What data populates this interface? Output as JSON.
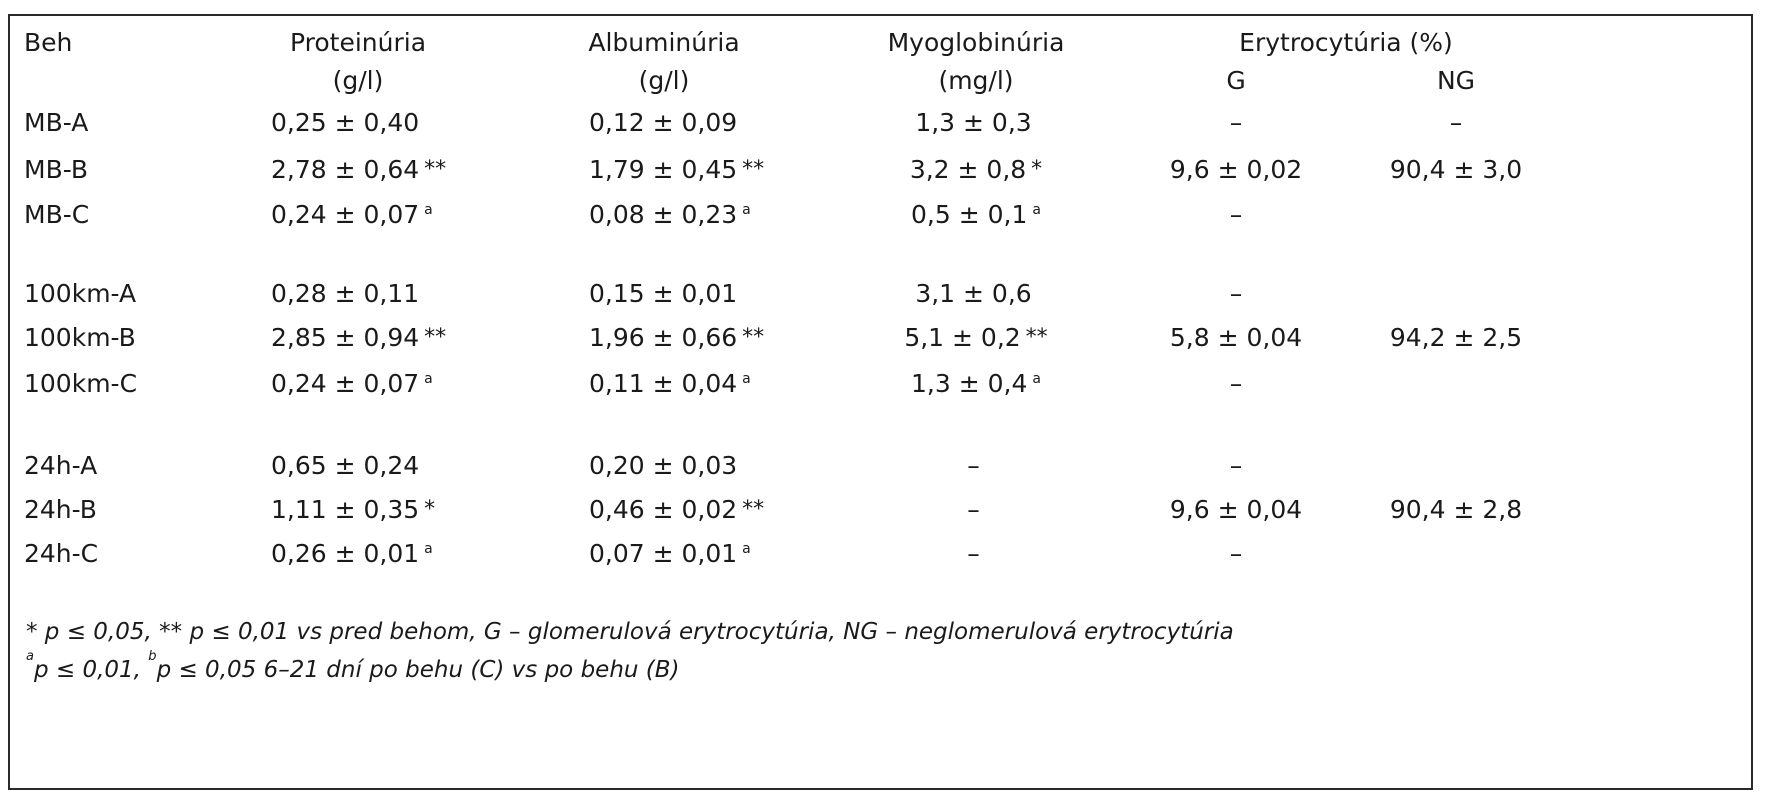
{
  "table": {
    "headers": {
      "beh": "Beh",
      "proteinuria": "Proteinúria",
      "proteinuria_unit": "(g/l)",
      "albuminuria": "Albuminúria",
      "albuminuria_unit": "(g/l)",
      "myoglobinuria": "Myoglobinúria",
      "myoglobinuria_unit": "(mg/l)",
      "erytrocyturia": "Erytrocytúria (%)",
      "g": "G",
      "ng": "NG"
    },
    "rows": [
      {
        "beh": "MB-A",
        "prot": "0,25 ± 0,40",
        "prot_mark": "",
        "alb": "0,12 ± 0,09",
        "alb_mark": "",
        "myo": "1,3 ± 0,3",
        "myo_mark": "",
        "g": "–",
        "ng": "–"
      },
      {
        "beh": "MB-B",
        "prot": "2,78 ± 0,64",
        "prot_mark": "**",
        "alb": "1,79 ± 0,45",
        "alb_mark": "**",
        "myo": "3,2 ± 0,8",
        "myo_mark": "*",
        "g": "9,6 ± 0,02",
        "ng": "90,4 ± 3,0"
      },
      {
        "beh": "MB-C",
        "prot": "0,24 ± 0,07",
        "prot_mark": "a",
        "alb": "0,08 ± 0,23",
        "alb_mark": "a",
        "myo": "0,5 ± 0,1",
        "myo_mark": "a",
        "g": "–",
        "ng": ""
      },
      {
        "beh": "100km-A",
        "prot": "0,28 ± 0,11",
        "prot_mark": "",
        "alb": "0,15 ± 0,01",
        "alb_mark": "",
        "myo": "3,1 ± 0,6",
        "myo_mark": "",
        "g": "–",
        "ng": ""
      },
      {
        "beh": "100km-B",
        "prot": "2,85 ± 0,94",
        "prot_mark": "**",
        "alb": "1,96 ± 0,66",
        "alb_mark": "**",
        "myo": "5,1 ± 0,2",
        "myo_mark": "**",
        "g": "5,8 ± 0,04",
        "ng": "94,2 ± 2,5"
      },
      {
        "beh": "100km-C",
        "prot": "0,24 ± 0,07",
        "prot_mark": "a",
        "alb": "0,11 ± 0,04",
        "alb_mark": "a",
        "myo": "1,3 ± 0,4",
        "myo_mark": "a",
        "g": "–",
        "ng": ""
      },
      {
        "beh": "24h-A",
        "prot": "0,65 ± 0,24",
        "prot_mark": "",
        "alb": "0,20 ± 0,03",
        "alb_mark": "",
        "myo": "–",
        "myo_mark": "",
        "g": "–",
        "ng": ""
      },
      {
        "beh": "24h-B",
        "prot": "1,11 ± 0,35",
        "prot_mark": "*",
        "alb": "0,46 ± 0,02",
        "alb_mark": "**",
        "myo": "–",
        "myo_mark": "",
        "g": "9,6 ± 0,04",
        "ng": "90,4 ± 2,8"
      },
      {
        "beh": "24h-C",
        "prot": "0,26 ± 0,01",
        "prot_mark": "a",
        "alb": "0,07 ± 0,01",
        "alb_mark": "a",
        "myo": "–",
        "myo_mark": "",
        "g": "–",
        "ng": ""
      }
    ],
    "footnote_1": "* p ≤ 0,05, ** p ≤ 0,01 vs pred behom, G – glomerulová erytrocytúria, NG – neglomerulová erytrocytúria",
    "footnote_2_a": "a",
    "footnote_2_p1": "p ≤ 0,01, ",
    "footnote_2_b": "b",
    "footnote_2_p2": "p ≤ 0,05 6–21 dní po behu (C) vs po behu (B)"
  }
}
